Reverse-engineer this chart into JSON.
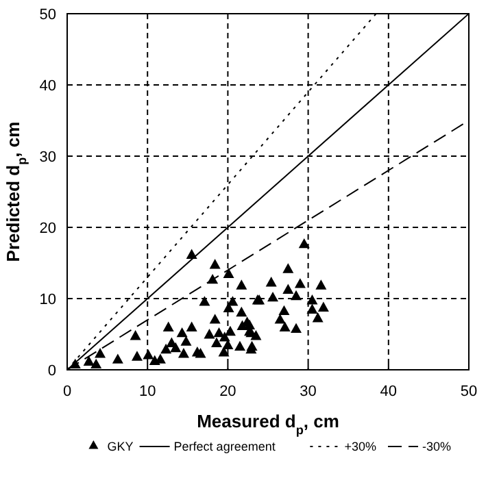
{
  "chart_data": {
    "type": "scatter",
    "xlabel": "Measured d$_{p}$, cm",
    "ylabel": "Predicted d$_{p}$, cm",
    "xlim": [
      0,
      50
    ],
    "ylim": [
      0,
      50
    ],
    "xticks": [
      0,
      10,
      20,
      30,
      40,
      50
    ],
    "yticks": [
      0,
      10,
      20,
      30,
      40,
      50
    ],
    "grid": true,
    "legend": "bottom",
    "series": [
      {
        "name": "GKY",
        "marker": "triangle",
        "color": "#000000",
        "x": [
          1.0,
          2.7,
          3.6,
          4.1,
          6.3,
          8.5,
          8.7,
          10.1,
          10.9,
          11.6,
          12.3,
          12.6,
          13.0,
          13.5,
          14.3,
          14.5,
          14.8,
          15.5,
          15.5,
          16.2,
          16.6,
          17.1,
          17.7,
          18.1,
          18.4,
          18.4,
          18.6,
          18.9,
          19.5,
          19.6,
          20.0,
          20.1,
          20.1,
          20.3,
          20.6,
          21.5,
          21.7,
          21.7,
          21.8,
          22.4,
          22.7,
          22.7,
          22.9,
          22.9,
          23.0,
          23.5,
          23.7,
          23.9,
          25.4,
          25.6,
          26.5,
          27.0,
          27.1,
          27.5,
          27.5,
          28.5,
          28.5,
          29.0,
          29.5,
          30.5,
          30.5,
          31.2,
          31.6,
          31.9
        ],
        "values": [
          0.8,
          1.2,
          0.8,
          2.3,
          1.5,
          4.8,
          1.9,
          2.1,
          1.3,
          1.5,
          2.9,
          6.0,
          3.8,
          3.1,
          5.2,
          2.3,
          4.0,
          6.0,
          16.2,
          2.5,
          2.3,
          9.6,
          5.0,
          12.7,
          14.8,
          7.1,
          3.8,
          5.2,
          2.5,
          4.6,
          3.5,
          13.5,
          8.7,
          5.4,
          9.6,
          3.3,
          11.9,
          8.1,
          6.2,
          6.7,
          5.4,
          6.3,
          5.2,
          2.9,
          3.3,
          4.8,
          9.8,
          9.8,
          12.3,
          10.2,
          7.1,
          8.3,
          6.0,
          14.2,
          11.3,
          10.4,
          5.8,
          12.1,
          17.7,
          9.8,
          8.5,
          7.3,
          11.9,
          8.8
        ]
      },
      {
        "name": "Perfect agreement",
        "type": "line",
        "line_style": "solid",
        "color": "#000000",
        "x": [
          0,
          50
        ],
        "values": [
          0,
          50
        ]
      },
      {
        "name": "+30%",
        "type": "line",
        "line_style": "dotted",
        "color": "#000000",
        "x": [
          0,
          38.46
        ],
        "values": [
          0,
          50
        ]
      },
      {
        "name": "-30%",
        "type": "line",
        "line_style": "dashed",
        "color": "#000000",
        "x": [
          0,
          50
        ],
        "values": [
          0,
          35
        ]
      }
    ]
  }
}
